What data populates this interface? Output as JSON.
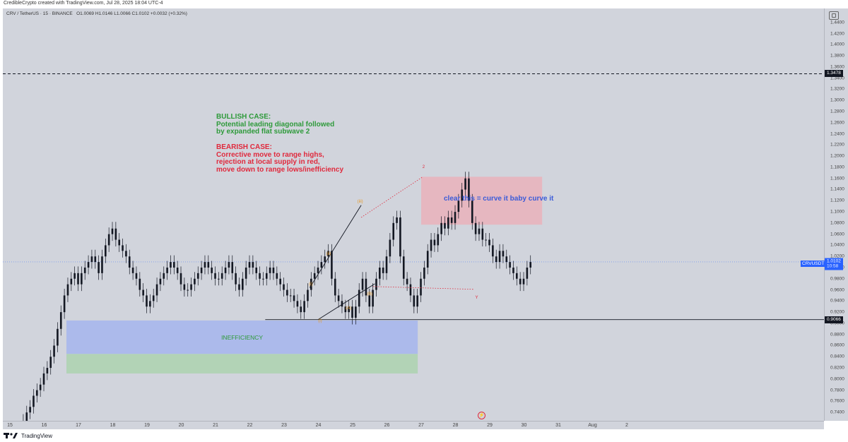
{
  "header": {
    "attribution": "CredibleCrypto created with TradingView.com, Jul 28, 2025 18:04 UTC-4"
  },
  "symbol_legend": {
    "name": "CRV / TetherUS · 15 · BINANCE",
    "ohlc": "O1.0069 H1.0146 L1.0066 C1.0102 +0.0032 (+0.32%)"
  },
  "colors": {
    "bullish_text": "#2e9a3a",
    "bearish_text": "#e0293c",
    "red_zone": "#f4a3ad",
    "blue_zone": "#9fb2f0",
    "green_zone": "#a7d3a9",
    "wave_orange": "#e69a28",
    "wave_red": "#e0293c",
    "annotation_blue": "#3a5bd9",
    "price_tag": "#2962ff"
  },
  "price_axis": {
    "ticks": [
      "1.4400",
      "1.4200",
      "1.4000",
      "1.3800",
      "1.3600",
      "1.3400",
      "1.3200",
      "1.3000",
      "1.2800",
      "1.2600",
      "1.2400",
      "1.2200",
      "1.2000",
      "1.1800",
      "1.1600",
      "1.1400",
      "1.1200",
      "1.1000",
      "1.0800",
      "1.0600",
      "1.0400",
      "1.0200",
      "1.0000",
      "0.9800",
      "0.9600",
      "0.9400",
      "0.9200",
      "0.9000",
      "0.8800",
      "0.8600",
      "0.8400",
      "0.8200",
      "0.8000",
      "0.7800",
      "0.7600",
      "0.7400"
    ],
    "tick_values": [
      1.44,
      1.42,
      1.4,
      1.38,
      1.36,
      1.34,
      1.32,
      1.3,
      1.28,
      1.26,
      1.24,
      1.22,
      1.2,
      1.18,
      1.16,
      1.14,
      1.12,
      1.1,
      1.08,
      1.06,
      1.04,
      1.02,
      1.0,
      0.98,
      0.96,
      0.94,
      0.92,
      0.9,
      0.88,
      0.86,
      0.84,
      0.82,
      0.8,
      0.78,
      0.76,
      0.74
    ],
    "range": [
      0.725,
      1.465
    ]
  },
  "time_axis": {
    "labels": [
      "15",
      "16",
      "17",
      "18",
      "19",
      "20",
      "21",
      "22",
      "23",
      "24",
      "25",
      "26",
      "27",
      "28",
      "29",
      "30",
      "31",
      "Aug",
      "2"
    ],
    "indices": [
      0,
      1,
      2,
      3,
      4,
      5,
      6,
      7,
      8,
      9,
      10,
      11,
      12,
      13,
      14,
      15,
      16,
      17,
      18
    ]
  },
  "levels": {
    "dashed_price": "1.3478",
    "dashed_value": 1.3478,
    "solid_price": "0.9066",
    "solid_value": 0.9066,
    "current_value": 1.0102
  },
  "price_tag": {
    "symbol": "CRVUSDT",
    "value": "1.0102",
    "countdown": "10:58"
  },
  "annotations": {
    "bullish": "BULLISH CASE:\nPotential leading diagonal followed\nby expanded flat subwave 2",
    "bearish": "BEARISH CASE:\nCorrective move to range highs,\nrejection at local supply in red,\nmove down to range lows/inefficiency",
    "zone_note": "clear this = curve it baby curve it",
    "inefficiency": "INEFFICIENCY"
  },
  "zones": {
    "red": {
      "x0": 12.0,
      "x1": 15.53,
      "top": 1.163,
      "bottom": 1.077
    },
    "blue": {
      "x0": 1.65,
      "x1": 11.9,
      "top": 0.905,
      "bottom": 0.845
    },
    "green": {
      "x0": 1.65,
      "x1": 11.9,
      "top": 0.845,
      "bottom": 0.81
    }
  },
  "wave_labels": [
    {
      "text": "(i)",
      "x": 9.05,
      "y": 0.904,
      "color": "wave_orange"
    },
    {
      "text": "(i)",
      "x": 8.78,
      "y": 0.969,
      "color": "wave_orange"
    },
    {
      "text": "(ii)",
      "x": 9.3,
      "y": 1.024,
      "color": "wave_orange"
    },
    {
      "text": "(iii)",
      "x": 10.22,
      "y": 1.118,
      "color": "wave_orange"
    },
    {
      "text": "(A)",
      "x": 9.88,
      "y": 0.926,
      "color": "wave_orange"
    },
    {
      "text": "(B)",
      "x": 10.5,
      "y": 0.952,
      "color": "wave_orange"
    },
    {
      "text": "2",
      "x": 12.07,
      "y": 1.18,
      "color": "wave_red"
    },
    {
      "text": "Y",
      "x": 13.62,
      "y": 0.946,
      "color": "wave_red"
    }
  ],
  "candles": {
    "start": 0.39,
    "step": 0.01,
    "close": [
      0.725,
      0.74,
      0.75,
      0.77,
      0.78,
      0.79,
      0.81,
      0.82,
      0.84,
      0.86,
      0.89,
      0.92,
      0.95,
      0.97,
      0.98,
      0.99,
      0.97,
      0.99,
      1.0,
      1.01,
      1.02,
      1.01,
      0.99,
      1.02,
      1.04,
      1.06,
      1.07,
      1.05,
      1.04,
      1.03,
      1.02,
      1.0,
      0.99,
      0.98,
      0.96,
      0.95,
      0.93,
      0.94,
      0.95,
      0.97,
      0.98,
      0.99,
      1.0,
      1.01,
      1.0,
      0.99,
      0.97,
      0.96,
      0.96,
      0.97,
      0.98,
      0.99,
      1.0,
      1.01,
      1.0,
      0.99,
      0.98,
      0.98,
      0.99,
      1.0,
      1.01,
      0.99,
      0.97,
      0.96,
      0.98,
      1.0,
      1.01,
      1.0,
      0.99,
      0.98,
      0.98,
      0.99,
      1.0,
      0.99,
      0.98,
      0.97,
      0.96,
      0.95,
      0.95,
      0.94,
      0.93,
      0.92,
      0.94,
      0.96,
      0.98,
      0.99,
      1.0,
      1.01,
      1.02,
      1.03,
      0.98,
      0.95,
      0.94,
      0.93,
      0.92,
      0.93,
      0.91,
      0.93,
      0.96,
      0.98,
      0.95,
      0.93,
      0.96,
      0.98,
      1.0,
      0.99,
      1.02,
      1.05,
      1.08,
      1.09,
      1.02,
      0.98,
      0.97,
      0.95,
      0.93,
      0.95,
      0.98,
      1.0,
      1.03,
      1.05,
      1.04,
      1.06,
      1.08,
      1.07,
      1.09,
      1.08,
      1.1,
      1.12,
      1.14,
      1.16,
      1.12,
      1.08,
      1.06,
      1.07,
      1.05,
      1.05,
      1.04,
      1.02,
      1.01,
      1.03,
      1.02,
      1.01,
      1.0,
      0.99,
      0.98,
      0.97,
      0.98,
      1.0,
      1.01
    ]
  }
}
